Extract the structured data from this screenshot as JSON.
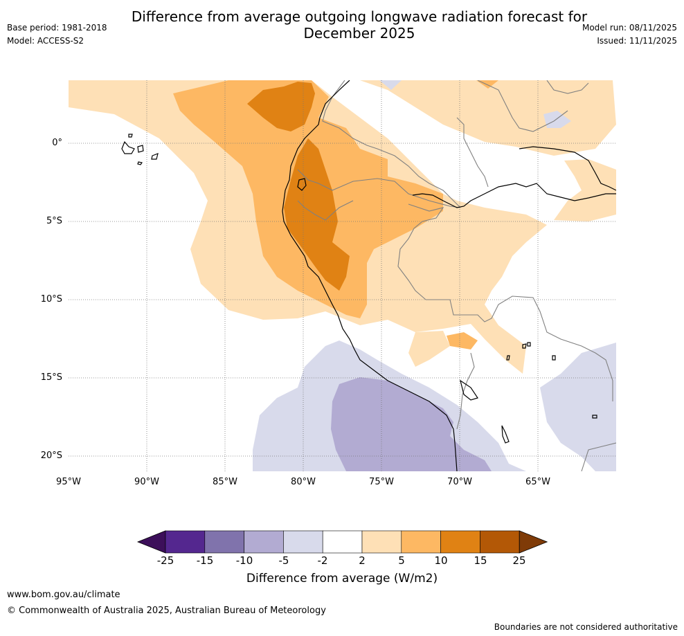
{
  "header": {
    "title_line1": "Difference from average outgoing longwave radiation forecast for",
    "title_line2": "December 2025",
    "base_period": "Base period: 1981-2018",
    "model": "Model: ACCESS-S2",
    "model_run": "Model run: 08/11/2025",
    "issued": "Issued: 11/11/2025"
  },
  "map": {
    "lat_labels": [
      "0°",
      "5°S",
      "10°S",
      "15°S",
      "20°S"
    ],
    "lon_labels": [
      "95°W",
      "90°W",
      "85°W",
      "80°W",
      "75°W",
      "70°W",
      "65°W"
    ]
  },
  "colorbar": {
    "ticks": [
      "-25",
      "-15",
      "-10",
      "-5",
      "-2",
      "2",
      "5",
      "10",
      "15",
      "25"
    ],
    "colors": [
      "#3c0f5a",
      "#54278f",
      "#8073ac",
      "#b2abd2",
      "#d8daeb",
      "#ffffff",
      "#fee0b6",
      "#fdb863",
      "#e08214",
      "#b35806",
      "#7f3b08"
    ],
    "title": "Difference from average (W/m2)"
  },
  "footer": {
    "url": "www.bom.gov.au/climate",
    "copyright": "© Commonwealth of Australia 2025, Australian Bureau of Meteorology",
    "disclaimer": "Boundaries are not considered authoritative"
  }
}
